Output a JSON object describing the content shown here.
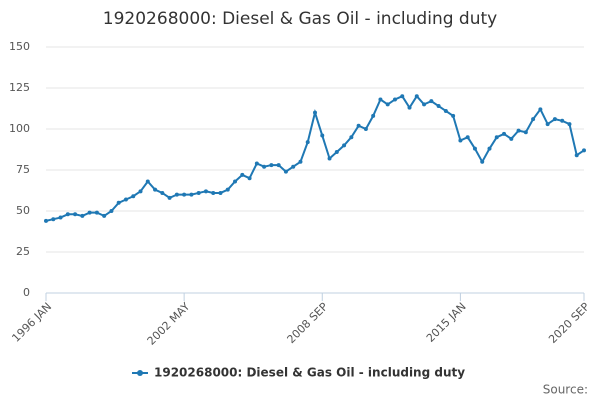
{
  "chart_data": {
    "type": "line",
    "title": "1920268000: Diesel & Gas Oil - including duty",
    "categories": [
      "1996 JAN",
      null,
      null,
      null,
      null,
      null,
      null,
      null,
      null,
      null,
      null,
      null,
      null,
      null,
      null,
      null,
      null,
      null,
      null,
      "2002 MAY",
      null,
      null,
      null,
      null,
      null,
      null,
      null,
      null,
      null,
      null,
      null,
      null,
      null,
      null,
      null,
      null,
      null,
      null,
      "2008 SEP",
      null,
      null,
      null,
      null,
      null,
      null,
      null,
      null,
      null,
      null,
      null,
      null,
      null,
      null,
      null,
      null,
      null,
      null,
      "2015 JAN",
      null,
      null,
      null,
      null,
      null,
      null,
      null,
      null,
      null,
      null,
      null,
      null,
      null,
      null,
      null,
      null,
      "2020 SEP"
    ],
    "series": [
      {
        "name": "1920268000: Diesel & Gas Oil - including duty",
        "color": "#1f78b4",
        "values": [
          44,
          45,
          46,
          48,
          48,
          47,
          49,
          49,
          47,
          50,
          55,
          57,
          59,
          62,
          68,
          63,
          61,
          58,
          60,
          60,
          60,
          61,
          62,
          61,
          61,
          63,
          68,
          72,
          70,
          79,
          77,
          78,
          78,
          74,
          77,
          80,
          92,
          110,
          96,
          82,
          86,
          90,
          95,
          102,
          100,
          108,
          118,
          115,
          118,
          120,
          113,
          120,
          115,
          117,
          114,
          111,
          108,
          93,
          95,
          88,
          80,
          88,
          95,
          97,
          94,
          99,
          98,
          106,
          112,
          103,
          106,
          105,
          103,
          84,
          87
        ]
      }
    ],
    "ylim": [
      0,
      150
    ],
    "yticks": [
      0,
      25,
      50,
      75,
      100,
      125,
      150
    ],
    "grid": true,
    "source": "Source:"
  }
}
